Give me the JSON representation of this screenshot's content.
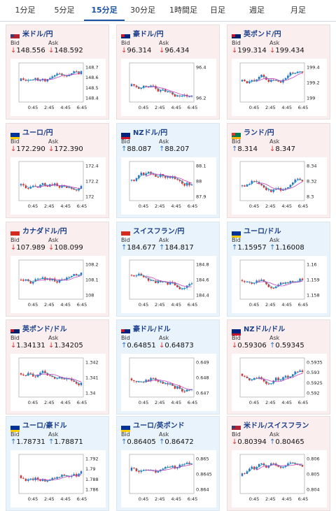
{
  "tabs": [
    {
      "label": "1分足",
      "active": false
    },
    {
      "label": "5分足",
      "active": false
    },
    {
      "label": "15分足",
      "active": true
    },
    {
      "label": "30分足",
      "active": false
    },
    {
      "label": "1時間足",
      "active": false
    },
    {
      "label": "日足",
      "active": false
    },
    {
      "label": "週足",
      "active": false
    },
    {
      "label": "月足",
      "active": false
    }
  ],
  "labels": {
    "bid": "Bid",
    "ask": "Ask"
  },
  "colors": {
    "up": "#2a6fc0",
    "down": "#d83030",
    "ma1": "#2aa6c8",
    "ma2": "#c040c0",
    "title": "#1a3f8a"
  },
  "x_ticks": [
    "0:45",
    "2:45",
    "4:45",
    "6:45"
  ],
  "cards": [
    {
      "title": "米ドル/円",
      "flag": "us-jp-flag-icon",
      "bg": "pink",
      "bid": "148.556",
      "ask": "148.592",
      "bid_dir": "down",
      "ask_dir": "down",
      "y_ticks": [
        "148.7",
        "148.6",
        "148.5",
        "148.4"
      ]
    },
    {
      "title": "豪ドル/円",
      "flag": "au-jp-flag-icon",
      "bg": "pink",
      "bid": "96.314",
      "ask": "96.434",
      "bid_dir": "down",
      "ask_dir": "down",
      "y_ticks": [
        "96.4",
        "96.2"
      ]
    },
    {
      "title": "英ポンド/円",
      "flag": "gb-jp-flag-icon",
      "bg": "pink",
      "bid": "199.314",
      "ask": "199.434",
      "bid_dir": "down",
      "ask_dir": "down",
      "y_ticks": [
        "199.4",
        "199.2",
        "199"
      ]
    },
    {
      "title": "ユーロ/円",
      "flag": "eu-jp-flag-icon",
      "bg": "pink",
      "bid": "172.290",
      "ask": "172.390",
      "bid_dir": "down",
      "ask_dir": "down",
      "y_ticks": [
        "172.4",
        "172.2",
        "172"
      ]
    },
    {
      "title": "NZドル/円",
      "flag": "nz-jp-flag-icon",
      "bg": "blue",
      "bid": "88.087",
      "ask": "88.207",
      "bid_dir": "up",
      "ask_dir": "up",
      "y_ticks": [
        "88.1",
        "88",
        "87.9"
      ]
    },
    {
      "title": "ランド/円",
      "flag": "za-jp-flag-icon",
      "bg": "pink",
      "bid": "8.314",
      "ask": "8.347",
      "bid_dir": "up",
      "ask_dir": "down",
      "y_ticks": [
        "8.34",
        "8.32",
        "8.3"
      ]
    },
    {
      "title": "カナダドル/円",
      "flag": "ca-jp-flag-icon",
      "bg": "pink",
      "bid": "107.989",
      "ask": "108.099",
      "bid_dir": "down",
      "ask_dir": "down",
      "y_ticks": [
        "108.2",
        "108.1",
        "108"
      ]
    },
    {
      "title": "スイスフラン/円",
      "flag": "ch-jp-flag-icon",
      "bg": "blue",
      "bid": "184.677",
      "ask": "184.817",
      "bid_dir": "up",
      "ask_dir": "up",
      "y_ticks": [
        "184.8",
        "184.6",
        "184.4"
      ]
    },
    {
      "title": "ユーロ/ドル",
      "flag": "eu-us-flag-icon",
      "bg": "blue",
      "bid": "1.15957",
      "ask": "1.16008",
      "bid_dir": "up",
      "ask_dir": "up",
      "y_ticks": [
        "1.16",
        "1.159",
        "1.158"
      ]
    },
    {
      "title": "英ポンド/ドル",
      "flag": "gb-us-flag-icon",
      "bg": "pink",
      "bid": "1.34131",
      "ask": "1.34205",
      "bid_dir": "down",
      "ask_dir": "down",
      "y_ticks": [
        "1.342",
        "1.341",
        "1.34"
      ]
    },
    {
      "title": "豪ドル/ドル",
      "flag": "au-us-flag-icon",
      "bg": "blue",
      "bid": "0.64851",
      "ask": "0.64873",
      "bid_dir": "up",
      "ask_dir": "down",
      "y_ticks": [
        "0.649",
        "0.648",
        "0.647"
      ]
    },
    {
      "title": "NZドル/ドル",
      "flag": "nz-us-flag-icon",
      "bg": "pink",
      "bid": "0.59306",
      "ask": "0.59345",
      "bid_dir": "down",
      "ask_dir": "up",
      "y_ticks": [
        "0.5935",
        "0.593",
        "0.5925",
        "0.592"
      ]
    },
    {
      "title": "ユーロ/豪ドル",
      "flag": "eu-au-flag-icon",
      "bg": "blue",
      "bid": "1.78731",
      "ask": "1.78871",
      "bid_dir": "up",
      "ask_dir": "up",
      "y_ticks": [
        "1.792",
        "1.79",
        "1.788",
        "1.786"
      ]
    },
    {
      "title": "ユーロ/英ポンド",
      "flag": "eu-gb-flag-icon",
      "bg": "blue",
      "bid": "0.86405",
      "ask": "0.86472",
      "bid_dir": "up",
      "ask_dir": "up",
      "y_ticks": [
        "0.865",
        "0.8645",
        "0.864"
      ]
    },
    {
      "title": "米ドル/スイスフラン",
      "flag": "us-ch-flag-icon",
      "bg": "pink",
      "bid": "0.80394",
      "ask": "0.80465",
      "bid_dir": "down",
      "ask_dir": "up",
      "y_ticks": [
        "0.806",
        "0.805",
        "0.804"
      ]
    }
  ]
}
